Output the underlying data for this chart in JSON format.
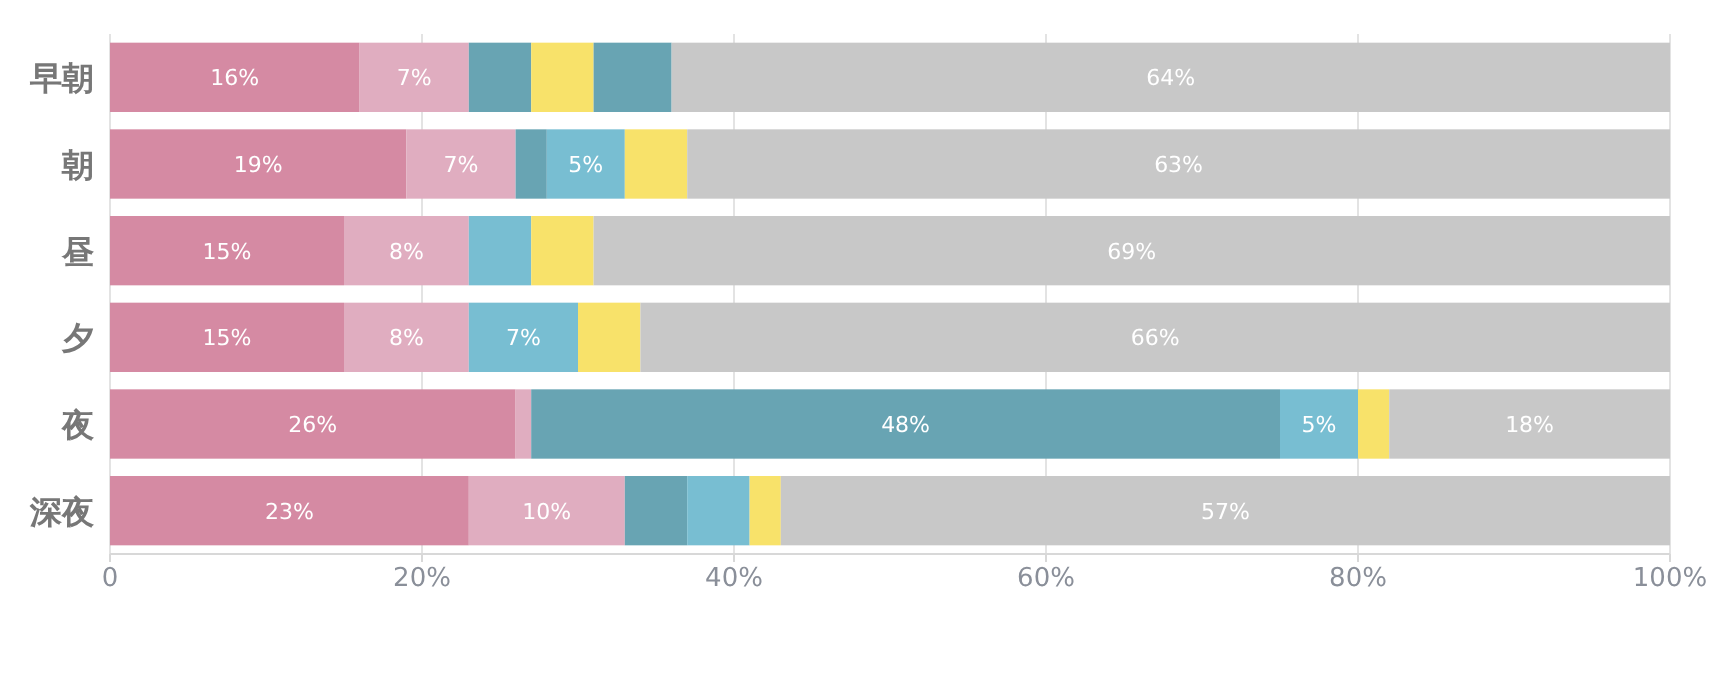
{
  "chart_data": {
    "type": "bar",
    "orientation": "horizontal",
    "stacked": true,
    "categories": [
      "早朝",
      "朝",
      "昼",
      "夕",
      "夜",
      "深夜"
    ],
    "series": [
      {
        "color": "#d58aa3",
        "values": [
          16,
          19,
          15,
          15,
          26,
          23
        ],
        "value_labels": [
          "16%",
          "19%",
          "15%",
          "15%",
          "26%",
          "23%"
        ]
      },
      {
        "color": "#e0adc0",
        "values": [
          7,
          7,
          8,
          8,
          1,
          10
        ],
        "value_labels": [
          "7%",
          "7%",
          "8%",
          "8%",
          null,
          "10%"
        ]
      },
      {
        "color": "#68a4b3",
        "values": [
          4,
          2,
          0,
          0,
          48,
          4
        ],
        "value_labels": [
          null,
          null,
          null,
          null,
          "48%",
          null
        ]
      },
      {
        "color": "#78bed2",
        "values": [
          0,
          5,
          4,
          7,
          5,
          4
        ],
        "value_labels": [
          null,
          "5%",
          null,
          "7%",
          "5%",
          null
        ]
      },
      {
        "color": "#f8e26a",
        "values": [
          4,
          4,
          4,
          4,
          2,
          2
        ],
        "value_labels": [
          null,
          null,
          null,
          null,
          null,
          null
        ]
      },
      {
        "color": "#68a4b3",
        "values": [
          5,
          0,
          0,
          0,
          0,
          0
        ],
        "value_labels": [
          null,
          null,
          null,
          null,
          null,
          null
        ]
      },
      {
        "color": "#c8c8c8",
        "values": [
          64,
          63,
          69,
          66,
          18,
          57
        ],
        "value_labels": [
          "64%",
          "63%",
          "69%",
          "66%",
          "18%",
          "57%"
        ]
      }
    ],
    "xlim": [
      0,
      100
    ],
    "xticks": [
      {
        "value": 0,
        "label": "0"
      },
      {
        "value": 20,
        "label": "20%"
      },
      {
        "value": 40,
        "label": "40%"
      },
      {
        "value": 60,
        "label": "60%"
      },
      {
        "value": 80,
        "label": "80%"
      },
      {
        "value": 100,
        "label": "100%"
      }
    ],
    "grid": "x"
  }
}
